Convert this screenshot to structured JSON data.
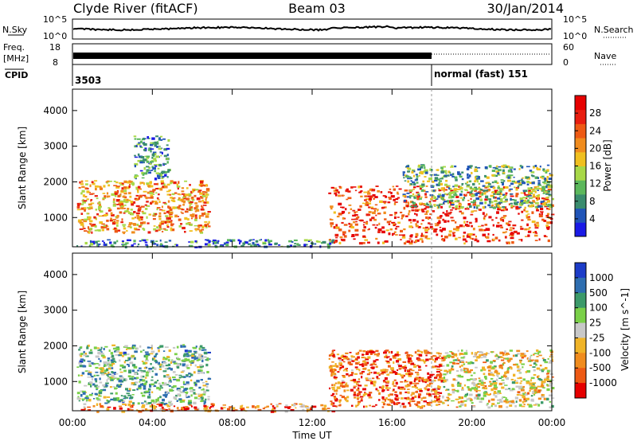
{
  "header": {
    "station": "Clyde River (fitACF)",
    "beam": "Beam 03",
    "date": "30/Jan/2014"
  },
  "strips": {
    "nsky": {
      "label": "N.Sky",
      "ticks": [
        "10^5",
        "10^0"
      ]
    },
    "nsearch": {
      "label": "N.Search",
      "ticks": [
        "10^5",
        "10^0"
      ]
    },
    "freq": {
      "label_line1": "Freq.",
      "label_line2": "[MHz]",
      "ticks": [
        "18",
        "8"
      ]
    },
    "nave": {
      "label": "Nave",
      "ticks": [
        "60",
        "0"
      ]
    },
    "cpid": {
      "label": "CPID",
      "left_value": "3503",
      "right_value": "normal (fast) 151"
    }
  },
  "colors": {
    "power_scale": [
      "#1a1ae6",
      "#2155b8",
      "#3a8c6e",
      "#5cb85c",
      "#a8d848",
      "#f0c020",
      "#f08c1e",
      "#ee5a14",
      "#e81e10",
      "#e60000"
    ],
    "velocity_scale": [
      "#1c3cc8",
      "#2e6eb0",
      "#3c9a6a",
      "#7ad048",
      "#c8c8c8",
      "#f0b428",
      "#f08c1e",
      "#ee5a14",
      "#e60000"
    ]
  },
  "chart_data": [
    {
      "type": "heatmap",
      "title": "Power",
      "xlabel": "Time UT",
      "ylabel": "Slant Range [km]",
      "x_ticks": [
        "00:00",
        "04:00",
        "08:00",
        "12:00",
        "16:00",
        "20:00",
        "00:00"
      ],
      "xlim_hours": [
        0,
        24
      ],
      "y_ticks": [
        1000,
        2000,
        3000,
        4000
      ],
      "ylim": [
        180,
        4600
      ],
      "colorbar": {
        "label": "Power [dB]",
        "ticks": [
          4,
          8,
          12,
          16,
          20,
          24,
          28
        ],
        "range": [
          0,
          32
        ]
      },
      "regions": [
        {
          "t": [
            0.2,
            6.8
          ],
          "r": [
            600,
            2050
          ],
          "level": 0.65
        },
        {
          "t": [
            3.0,
            4.8
          ],
          "r": [
            2100,
            3300
          ],
          "level": 0.25
        },
        {
          "t": [
            12.8,
            24.0
          ],
          "r": [
            300,
            1900
          ],
          "level": 0.8
        },
        {
          "t": [
            16.5,
            24.0
          ],
          "r": [
            1300,
            2500
          ],
          "level": 0.35
        },
        {
          "t": [
            0.2,
            13.0
          ],
          "r": [
            190,
            400
          ],
          "level": 0.2
        }
      ]
    },
    {
      "type": "heatmap",
      "title": "Velocity",
      "xlabel": "Time UT",
      "ylabel": "Slant Range [km]",
      "x_ticks": [
        "00:00",
        "04:00",
        "08:00",
        "12:00",
        "16:00",
        "20:00",
        "00:00"
      ],
      "xlim_hours": [
        0,
        24
      ],
      "y_ticks": [
        1000,
        2000,
        3000,
        4000
      ],
      "ylim": [
        180,
        4600
      ],
      "colorbar": {
        "label": "Velocity [m s^-1]",
        "ticks": [
          "1000",
          "500",
          "100",
          "25",
          "-25",
          "-100",
          "-500",
          "-1000"
        ]
      },
      "regions": [
        {
          "t": [
            0.2,
            6.8
          ],
          "r": [
            400,
            2050
          ],
          "level": 0.35
        },
        {
          "t": [
            12.8,
            18.5
          ],
          "r": [
            300,
            1900
          ],
          "level": 0.8
        },
        {
          "t": [
            18.5,
            24.0
          ],
          "r": [
            300,
            1900
          ],
          "level": 0.55
        },
        {
          "t": [
            0.2,
            13.0
          ],
          "r": [
            190,
            400
          ],
          "level": 0.75
        }
      ]
    }
  ]
}
